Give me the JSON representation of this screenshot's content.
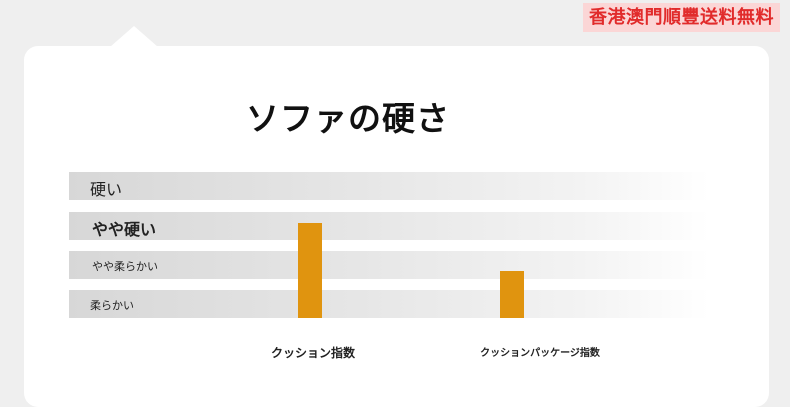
{
  "banner": {
    "text": "香港澳門順豐送料無料"
  },
  "title": "ソファの硬さ",
  "chart_data": {
    "type": "bar",
    "categories": [
      "クッション指数",
      "クッションパッケージ指数"
    ],
    "levels": [
      "硬い",
      "やや硬い",
      "やや柔らかい",
      "柔らかい"
    ],
    "values": [
      2.6,
      1.3
    ],
    "ylim": [
      0,
      4
    ],
    "bar_color": "#e0940f"
  },
  "colors": {
    "band": "#d7d7d7",
    "banner_text": "#e12b2b",
    "banner_bg": "#fbd6d6"
  }
}
